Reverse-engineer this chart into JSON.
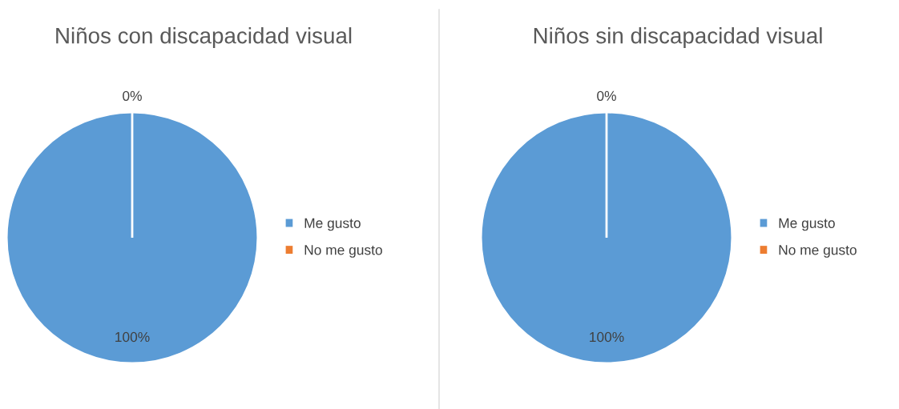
{
  "chart_data": [
    {
      "type": "pie",
      "title": "Niños con discapacidad visual",
      "categories": [
        "Me gusto",
        "No me gusto"
      ],
      "values": [
        100,
        0
      ],
      "colors": [
        "#5b9bd5",
        "#ed7d31"
      ],
      "value_labels": [
        "100%",
        "0%"
      ],
      "legend": "right"
    },
    {
      "type": "pie",
      "title": "Niños sin discapacidad visual",
      "categories": [
        "Me gusto",
        "No me gusto"
      ],
      "values": [
        100,
        0
      ],
      "colors": [
        "#5b9bd5",
        "#ed7d31"
      ],
      "value_labels": [
        "100%",
        "0%"
      ],
      "legend": "right"
    }
  ]
}
